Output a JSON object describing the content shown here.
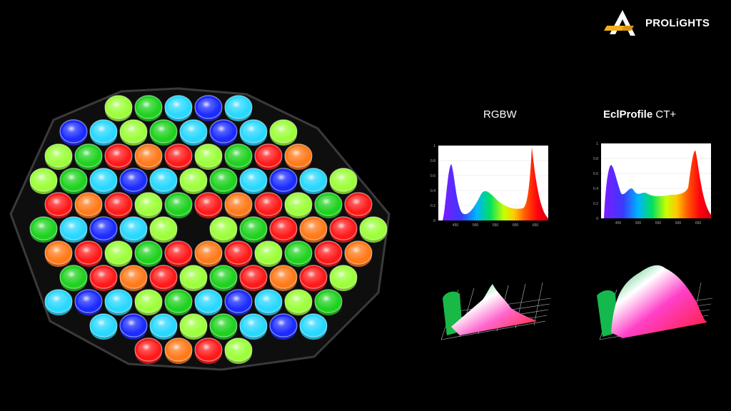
{
  "brand": {
    "name": "PROLiGHTS"
  },
  "panels": [
    {
      "id": "rgbw",
      "title_bold": "",
      "title_regular": "RGBW",
      "y_ticks": [
        "1",
        "0.8",
        "0.6",
        "0.4",
        "0.2",
        "0"
      ],
      "x_ticks": [
        "450",
        "500",
        "550",
        "600",
        "650"
      ]
    },
    {
      "id": "eclprofile",
      "title_bold": "EclProfile",
      "title_regular": " CT+",
      "y_ticks": [
        "1",
        "0.8",
        "0.6",
        "0.4",
        "0.2",
        "0"
      ],
      "x_ticks": [
        "450",
        "500",
        "550",
        "600",
        "650"
      ]
    }
  ],
  "led_colors": {
    "red": "#ff1a1a",
    "green": "#1fd21f",
    "blue": "#1c2cff",
    "cyan": "#28d8ff",
    "lime": "#9cff3a",
    "orange": "#ff7a1a"
  }
}
